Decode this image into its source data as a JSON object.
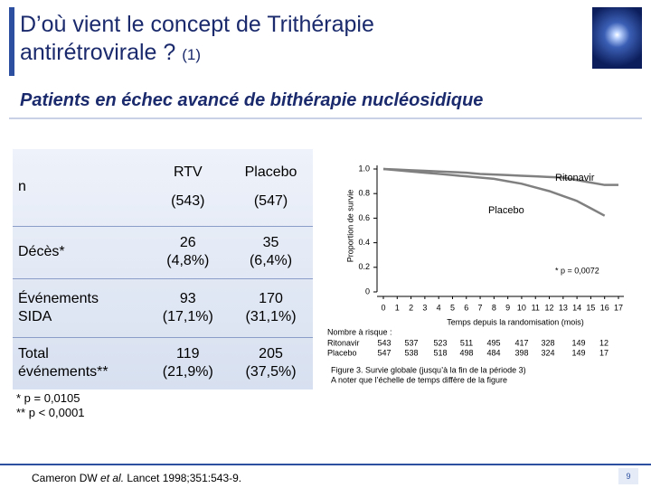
{
  "header": {
    "title_lines": [
      "D’où vient le concept de Trithérapie",
      "antirétrovirale ?"
    ],
    "title_note": "(1)",
    "subtitle": "Patients en échec avancé de bithérapie nucléosidique"
  },
  "table": {
    "header": [
      [
        "n"
      ],
      [
        "RTV",
        "(543)"
      ],
      [
        "Placebo",
        "(547)"
      ]
    ],
    "rows": [
      [
        [
          "Décès*"
        ],
        [
          "26",
          "(4,8%)"
        ],
        [
          "35",
          "(6,4%)"
        ]
      ],
      [
        [
          "Événements",
          "SIDA"
        ],
        [
          "93",
          "(17,1%)"
        ],
        [
          "170",
          "(31,1%)"
        ]
      ],
      [
        [
          "Total",
          "événements**"
        ],
        [
          "119",
          "(21,9%)"
        ],
        [
          "205",
          "(37,5%)"
        ]
      ]
    ]
  },
  "footnotes": [
    "* p = 0,0105",
    "** p < 0,0001"
  ],
  "reference": {
    "before": "Cameron DW ",
    "italic": "et al.",
    "after": " Lancet 1998;351:543-9."
  },
  "page_number": "9",
  "chart_data": {
    "type": "line",
    "y_label": "Proportion de survie",
    "x_label": "Temps depuis la randomisation (mois)",
    "x": [
      0,
      1,
      2,
      3,
      4,
      5,
      6,
      7,
      8,
      9,
      10,
      11,
      12,
      13,
      14,
      15,
      16,
      17
    ],
    "series": [
      {
        "name": "Ritonavir",
        "color": "#808080",
        "values": [
          1,
          0.995,
          0.99,
          0.985,
          0.98,
          0.975,
          0.97,
          0.96,
          0.955,
          0.95,
          0.945,
          0.94,
          0.935,
          0.93,
          0.91,
          0.89,
          0.87,
          0.87
        ]
      },
      {
        "name": "Placebo",
        "color": "#808080",
        "values": [
          1,
          0.99,
          0.98,
          0.97,
          0.96,
          0.95,
          0.94,
          0.93,
          0.92,
          0.9,
          0.88,
          0.85,
          0.82,
          0.78,
          0.74,
          0.68,
          0.62,
          null
        ]
      }
    ],
    "xlim": [
      0,
      17
    ],
    "ylim": [
      0,
      1
    ],
    "xticks": [
      0,
      1,
      2,
      3,
      4,
      5,
      6,
      7,
      8,
      9,
      10,
      11,
      12,
      13,
      14,
      15,
      16,
      17
    ],
    "yticks": [
      0,
      {
        "value": 0.2,
        "label": "0.2"
      },
      {
        "value": 0.4,
        "label": "0.4"
      },
      {
        "value": 0.6,
        "label": "0.6"
      },
      {
        "value": 0.8,
        "label": "0.8"
      },
      {
        "value": 1,
        "label": "1.0"
      }
    ],
    "annotation": "* p = 0,0072",
    "risk_table": {
      "title": "Nombre à risque :",
      "rows": [
        {
          "name": "Ritonavir",
          "values": [
            543,
            537,
            523,
            511,
            495,
            417,
            328,
            149,
            12
          ]
        },
        {
          "name": "Placebo",
          "values": [
            547,
            538,
            518,
            498,
            484,
            398,
            324,
            149,
            17
          ]
        }
      ]
    },
    "caption": [
      "Figure 3. Survie globale (jusqu’à la fin de la période 3)",
      "A noter que l’échelle de temps diffère de la figure"
    ]
  }
}
